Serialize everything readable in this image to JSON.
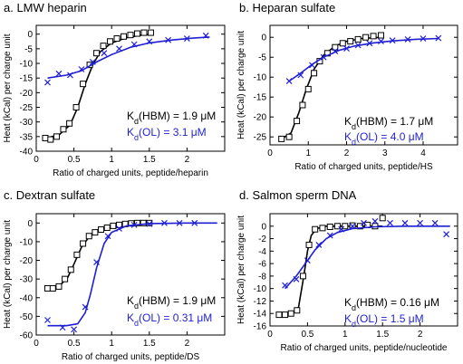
{
  "figure": {
    "marker_colors": {
      "HBM": "#000000",
      "OL": "#1f1fd6"
    }
  },
  "chart_data": [
    {
      "type": "scatter",
      "panel_label": "a.",
      "title": "LMW heparin",
      "xlabel": "Ratio of charged units, peptide/heparin",
      "ylabel": "Heat (kCal) per charge unit",
      "xlim": [
        0,
        2.5
      ],
      "ylim": [
        -40,
        3
      ],
      "xticks": [
        0,
        0.5,
        1,
        1.5,
        2
      ],
      "yticks": [
        -40,
        -35,
        -30,
        -25,
        -20,
        -15,
        -10,
        -5,
        0
      ],
      "grid": false,
      "annotations": [
        {
          "label": "K",
          "sub": "d",
          "rest": "(HBM) = 1.9   μM",
          "series": "HBM"
        },
        {
          "label": "K",
          "sub": "d",
          "rest": "(OL) = 3.1   μM",
          "series": "OL"
        }
      ],
      "series": [
        {
          "id": "HBM",
          "marker": "square",
          "color": "#000000",
          "x": [
            0.12,
            0.19,
            0.27,
            0.36,
            0.44,
            0.53,
            0.62,
            0.71,
            0.8,
            0.89,
            0.98,
            1.07,
            1.16,
            1.25,
            1.34,
            1.43,
            1.52
          ],
          "y": [
            -35.5,
            -36,
            -35,
            -32.5,
            -30.5,
            -25,
            -17,
            -10.5,
            -6.5,
            -4,
            -2.5,
            -1.5,
            -0.8,
            -0.3,
            0.2,
            0.5,
            0.5
          ],
          "fit_x": [
            0.12,
            0.3,
            0.45,
            0.55,
            0.65,
            0.75,
            0.85,
            1.0,
            1.2,
            1.4,
            1.55
          ],
          "fit_y": [
            -35.5,
            -34.5,
            -31,
            -25,
            -17,
            -10.5,
            -6,
            -3,
            -1.2,
            -0.3,
            0
          ]
        },
        {
          "id": "OL",
          "marker": "x",
          "color": "#1f1fd6",
          "x": [
            0.15,
            0.3,
            0.45,
            0.6,
            0.75,
            0.9,
            1.1,
            1.3,
            1.5,
            1.75,
            2.0,
            2.25
          ],
          "y": [
            -16.5,
            -13.5,
            -14,
            -12,
            -9.5,
            -6.5,
            -5,
            -3.5,
            -2.5,
            -2,
            -1.5,
            -0.5
          ],
          "fit_x": [
            0.15,
            0.4,
            0.6,
            0.8,
            1.0,
            1.25,
            1.5,
            1.8,
            2.1,
            2.3
          ],
          "fit_y": [
            -15,
            -14,
            -12.5,
            -9.5,
            -7,
            -4.5,
            -3,
            -2,
            -1.3,
            -1
          ]
        }
      ]
    },
    {
      "type": "scatter",
      "panel_label": "b.",
      "title": "Heparan sulfate",
      "xlabel": "Ratio of charged units, peptide/HS",
      "ylabel": "Heat (kCal) per charge unit",
      "xlim": [
        0,
        4.9
      ],
      "ylim": [
        -27,
        3
      ],
      "xticks": [
        0,
        1,
        2,
        3,
        4
      ],
      "yticks": [
        -25,
        -20,
        -15,
        -10,
        -5,
        0
      ],
      "grid": false,
      "annotations": [
        {
          "label": "K",
          "sub": "d",
          "rest": "(HBM) = 1.7   μM",
          "series": "HBM"
        },
        {
          "label": "K",
          "sub": "d",
          "rest": "(OL) = 4.0   μM",
          "series": "OL"
        }
      ],
      "series": [
        {
          "id": "HBM",
          "marker": "square",
          "color": "#000000",
          "x": [
            0.3,
            0.5,
            0.7,
            0.85,
            1.0,
            1.15,
            1.3,
            1.5,
            1.7,
            1.9,
            2.1,
            2.3,
            2.5,
            2.7,
            2.9
          ],
          "y": [
            -25.5,
            -25,
            -21,
            -17,
            -13,
            -9,
            -6,
            -4,
            -2.5,
            -1.5,
            -1,
            -0.5,
            0,
            0.3,
            0.5
          ],
          "fit_x": [
            0.3,
            0.55,
            0.75,
            0.95,
            1.15,
            1.4,
            1.7,
            2.0,
            2.4,
            2.9
          ],
          "fit_y": [
            -25.5,
            -24,
            -19,
            -13,
            -8,
            -4.5,
            -2.2,
            -1,
            -0.3,
            0
          ]
        },
        {
          "id": "OL",
          "marker": "x",
          "color": "#1f1fd6",
          "x": [
            0.5,
            0.8,
            1.1,
            1.4,
            1.7,
            2.0,
            2.3,
            2.6,
            2.9,
            3.2,
            3.6,
            4.0,
            4.4
          ],
          "y": [
            -11,
            -9.5,
            -7,
            -5,
            -3.5,
            -2.8,
            -2,
            -1.5,
            -1,
            -0.8,
            -0.5,
            -0.3,
            -0.2
          ],
          "fit_x": [
            0.5,
            0.8,
            1.1,
            1.4,
            1.8,
            2.2,
            2.7,
            3.2,
            3.8,
            4.4
          ],
          "fit_y": [
            -11,
            -9,
            -6.8,
            -5,
            -3.3,
            -2.2,
            -1.4,
            -0.9,
            -0.5,
            -0.3
          ]
        }
      ]
    },
    {
      "type": "scatter",
      "panel_label": "c.",
      "title": "Dextran sulfate",
      "xlabel": "Ratio of charged units, peptide/DS",
      "ylabel": "Heat (kCal) per charge unit",
      "xlim": [
        0,
        2.5
      ],
      "ylim": [
        -60,
        5
      ],
      "xticks": [
        0,
        0.5,
        1,
        1.5,
        2
      ],
      "yticks": [
        -60,
        -50,
        -40,
        -30,
        -20,
        -10,
        0
      ],
      "grid": false,
      "annotations": [
        {
          "label": "K",
          "sub": "d",
          "rest": "(HBM) = 1.9   μM",
          "series": "HBM"
        },
        {
          "label": "K",
          "sub": "d",
          "rest": "(OL) = 0.31   μM",
          "series": "OL"
        }
      ],
      "series": [
        {
          "id": "HBM",
          "marker": "square",
          "color": "#000000",
          "x": [
            0.15,
            0.22,
            0.3,
            0.38,
            0.46,
            0.54,
            0.62,
            0.7,
            0.78,
            0.86,
            0.94,
            1.02,
            1.1,
            1.18,
            1.26,
            1.34,
            1.42,
            1.5
          ],
          "y": [
            -35,
            -35,
            -34,
            -30,
            -25,
            -17,
            -11,
            -7,
            -5,
            -3.5,
            -2.5,
            -1.5,
            -1,
            -0.5,
            -0.2,
            0,
            0,
            0
          ],
          "fit_x": [
            0.15,
            0.3,
            0.42,
            0.5,
            0.6,
            0.7,
            0.85,
            1.0,
            1.2,
            1.5
          ],
          "fit_y": [
            -35,
            -34,
            -29,
            -22,
            -13,
            -7.5,
            -3.5,
            -1.5,
            -0.4,
            0
          ]
        },
        {
          "id": "OL",
          "marker": "x",
          "color": "#1f1fd6",
          "x": [
            0.15,
            0.35,
            0.5,
            0.65,
            0.8,
            0.95,
            1.1,
            1.3,
            1.5,
            1.7,
            1.9,
            2.1
          ],
          "y": [
            -52,
            -56,
            -57,
            -45,
            -21,
            -7,
            -3,
            -1,
            -0.5,
            0,
            0,
            0
          ],
          "fit_x": [
            0.15,
            0.4,
            0.55,
            0.65,
            0.72,
            0.8,
            0.9,
            1.0,
            1.2,
            1.5,
            2.0,
            2.4
          ],
          "fit_y": [
            -55,
            -55,
            -54,
            -48,
            -38,
            -24,
            -11,
            -5,
            -1.5,
            -0.3,
            0,
            0
          ]
        }
      ]
    },
    {
      "type": "scatter",
      "panel_label": "d.",
      "title": "Salmon sperm DNA",
      "xlabel": "Ratio of charged units, peptide/nucleotide",
      "ylabel": "Heat (kCal) per charge unit",
      "xlim": [
        0,
        2.5
      ],
      "ylim": [
        -16,
        2
      ],
      "xticks": [
        0,
        0.5,
        1,
        1.5,
        2
      ],
      "yticks": [
        -16,
        -14,
        -12,
        -10,
        -8,
        -6,
        -4,
        -2,
        0
      ],
      "grid": false,
      "annotations": [
        {
          "label": "K",
          "sub": "d",
          "rest": "(HBM) = 0.16   μM",
          "series": "HBM"
        },
        {
          "label": "K",
          "sub": "d",
          "rest": "(OL) = 1.5   μM",
          "series": "OL"
        }
      ],
      "series": [
        {
          "id": "HBM",
          "marker": "square",
          "color": "#000000",
          "x": [
            0.12,
            0.2,
            0.28,
            0.36,
            0.44,
            0.52,
            0.6,
            0.7,
            0.8,
            0.9,
            1.0,
            1.1,
            1.2,
            1.3,
            1.4,
            1.5
          ],
          "y": [
            -14.2,
            -14.2,
            -14,
            -13.5,
            -8,
            -3,
            -0.5,
            -0.3,
            -0.1,
            0,
            0,
            0.1,
            0,
            0.2,
            0,
            1.3
          ],
          "fit_x": [
            0.12,
            0.3,
            0.38,
            0.45,
            0.5,
            0.55,
            0.62,
            0.75,
            1.0,
            1.5
          ],
          "fit_y": [
            -14.2,
            -14,
            -13,
            -8,
            -4,
            -1.5,
            -0.4,
            0,
            0,
            0
          ]
        },
        {
          "id": "OL",
          "marker": "x",
          "color": "#1f1fd6",
          "x": [
            0.2,
            0.35,
            0.5,
            0.65,
            0.8,
            0.95,
            1.1,
            1.25,
            1.4,
            1.6,
            1.8,
            2.0,
            2.2,
            2.35
          ],
          "y": [
            -9.5,
            -8.5,
            -5.5,
            -3,
            -1.5,
            -0.5,
            0,
            0.5,
            0.8,
            0.5,
            0.5,
            0.5,
            0.5,
            -1.3
          ],
          "fit_x": [
            0.2,
            0.35,
            0.5,
            0.6,
            0.75,
            0.9,
            1.1,
            1.4,
            1.8,
            2.4
          ],
          "fit_y": [
            -10,
            -8,
            -5.5,
            -3.8,
            -2,
            -1,
            -0.4,
            -0.1,
            0,
            0
          ]
        }
      ]
    }
  ]
}
